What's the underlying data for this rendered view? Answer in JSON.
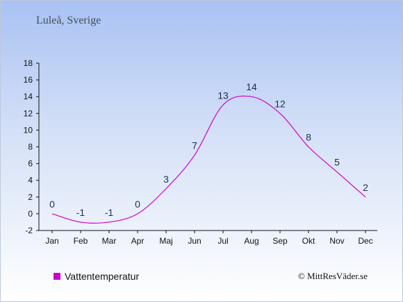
{
  "header": {
    "location": "Luleå, Sverige"
  },
  "chart_data": {
    "type": "line",
    "categories": [
      "Jan",
      "Feb",
      "Mar",
      "Apr",
      "Maj",
      "Jun",
      "Jul",
      "Aug",
      "Sep",
      "Okt",
      "Nov",
      "Dec"
    ],
    "series": [
      {
        "name": "Vattentemperatur",
        "values": [
          0,
          -1,
          -1,
          0,
          3,
          7,
          13,
          14,
          12,
          8,
          5,
          2
        ],
        "color": "#cc00cc"
      }
    ],
    "ylim": [
      -2,
      18
    ],
    "yticks": [
      -2,
      0,
      2,
      4,
      6,
      8,
      10,
      12,
      14,
      16,
      18
    ],
    "grid": false,
    "legend_position": "bottom-left"
  },
  "legend": {
    "label": "Vattentemperatur",
    "color": "#cc00cc"
  },
  "footer": {
    "copyright": "© MittResVäder.se"
  }
}
